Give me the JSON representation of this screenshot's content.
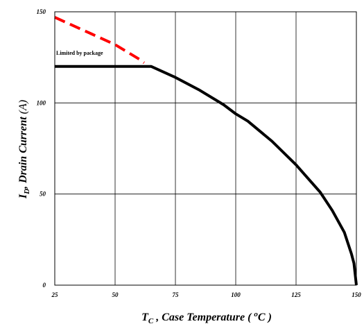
{
  "chart_data": {
    "type": "line",
    "xlim": [
      25,
      150
    ],
    "ylim": [
      0,
      150
    ],
    "x_ticks": [
      25,
      50,
      75,
      100,
      125,
      150
    ],
    "y_ticks": [
      0,
      50,
      100,
      150
    ],
    "grid": true,
    "xlabel": {
      "main": "T",
      "sub": "C",
      "rest": " , Case Temperature ( ",
      "sup": "o",
      "end": "C )"
    },
    "ylabel": {
      "main": "I",
      "sub": "D",
      "rest": ", Drain Current ",
      "unit": "(A)"
    },
    "annotation": "Limited by package",
    "series": [
      {
        "style": "dashed",
        "color": "#ff0000",
        "x": [
          25,
          30,
          40,
          50,
          55,
          60,
          62
        ],
        "y": [
          147,
          144,
          138,
          132,
          128,
          124,
          122
        ]
      },
      {
        "style": "solid",
        "color": "#000000",
        "x": [
          25,
          65,
          75,
          85,
          95,
          100,
          105,
          115,
          125,
          135,
          140,
          145,
          148,
          149,
          150
        ],
        "y": [
          120,
          120,
          114,
          107,
          99,
          94,
          90,
          79,
          66,
          51,
          41,
          29,
          17,
          12,
          0
        ]
      }
    ]
  }
}
